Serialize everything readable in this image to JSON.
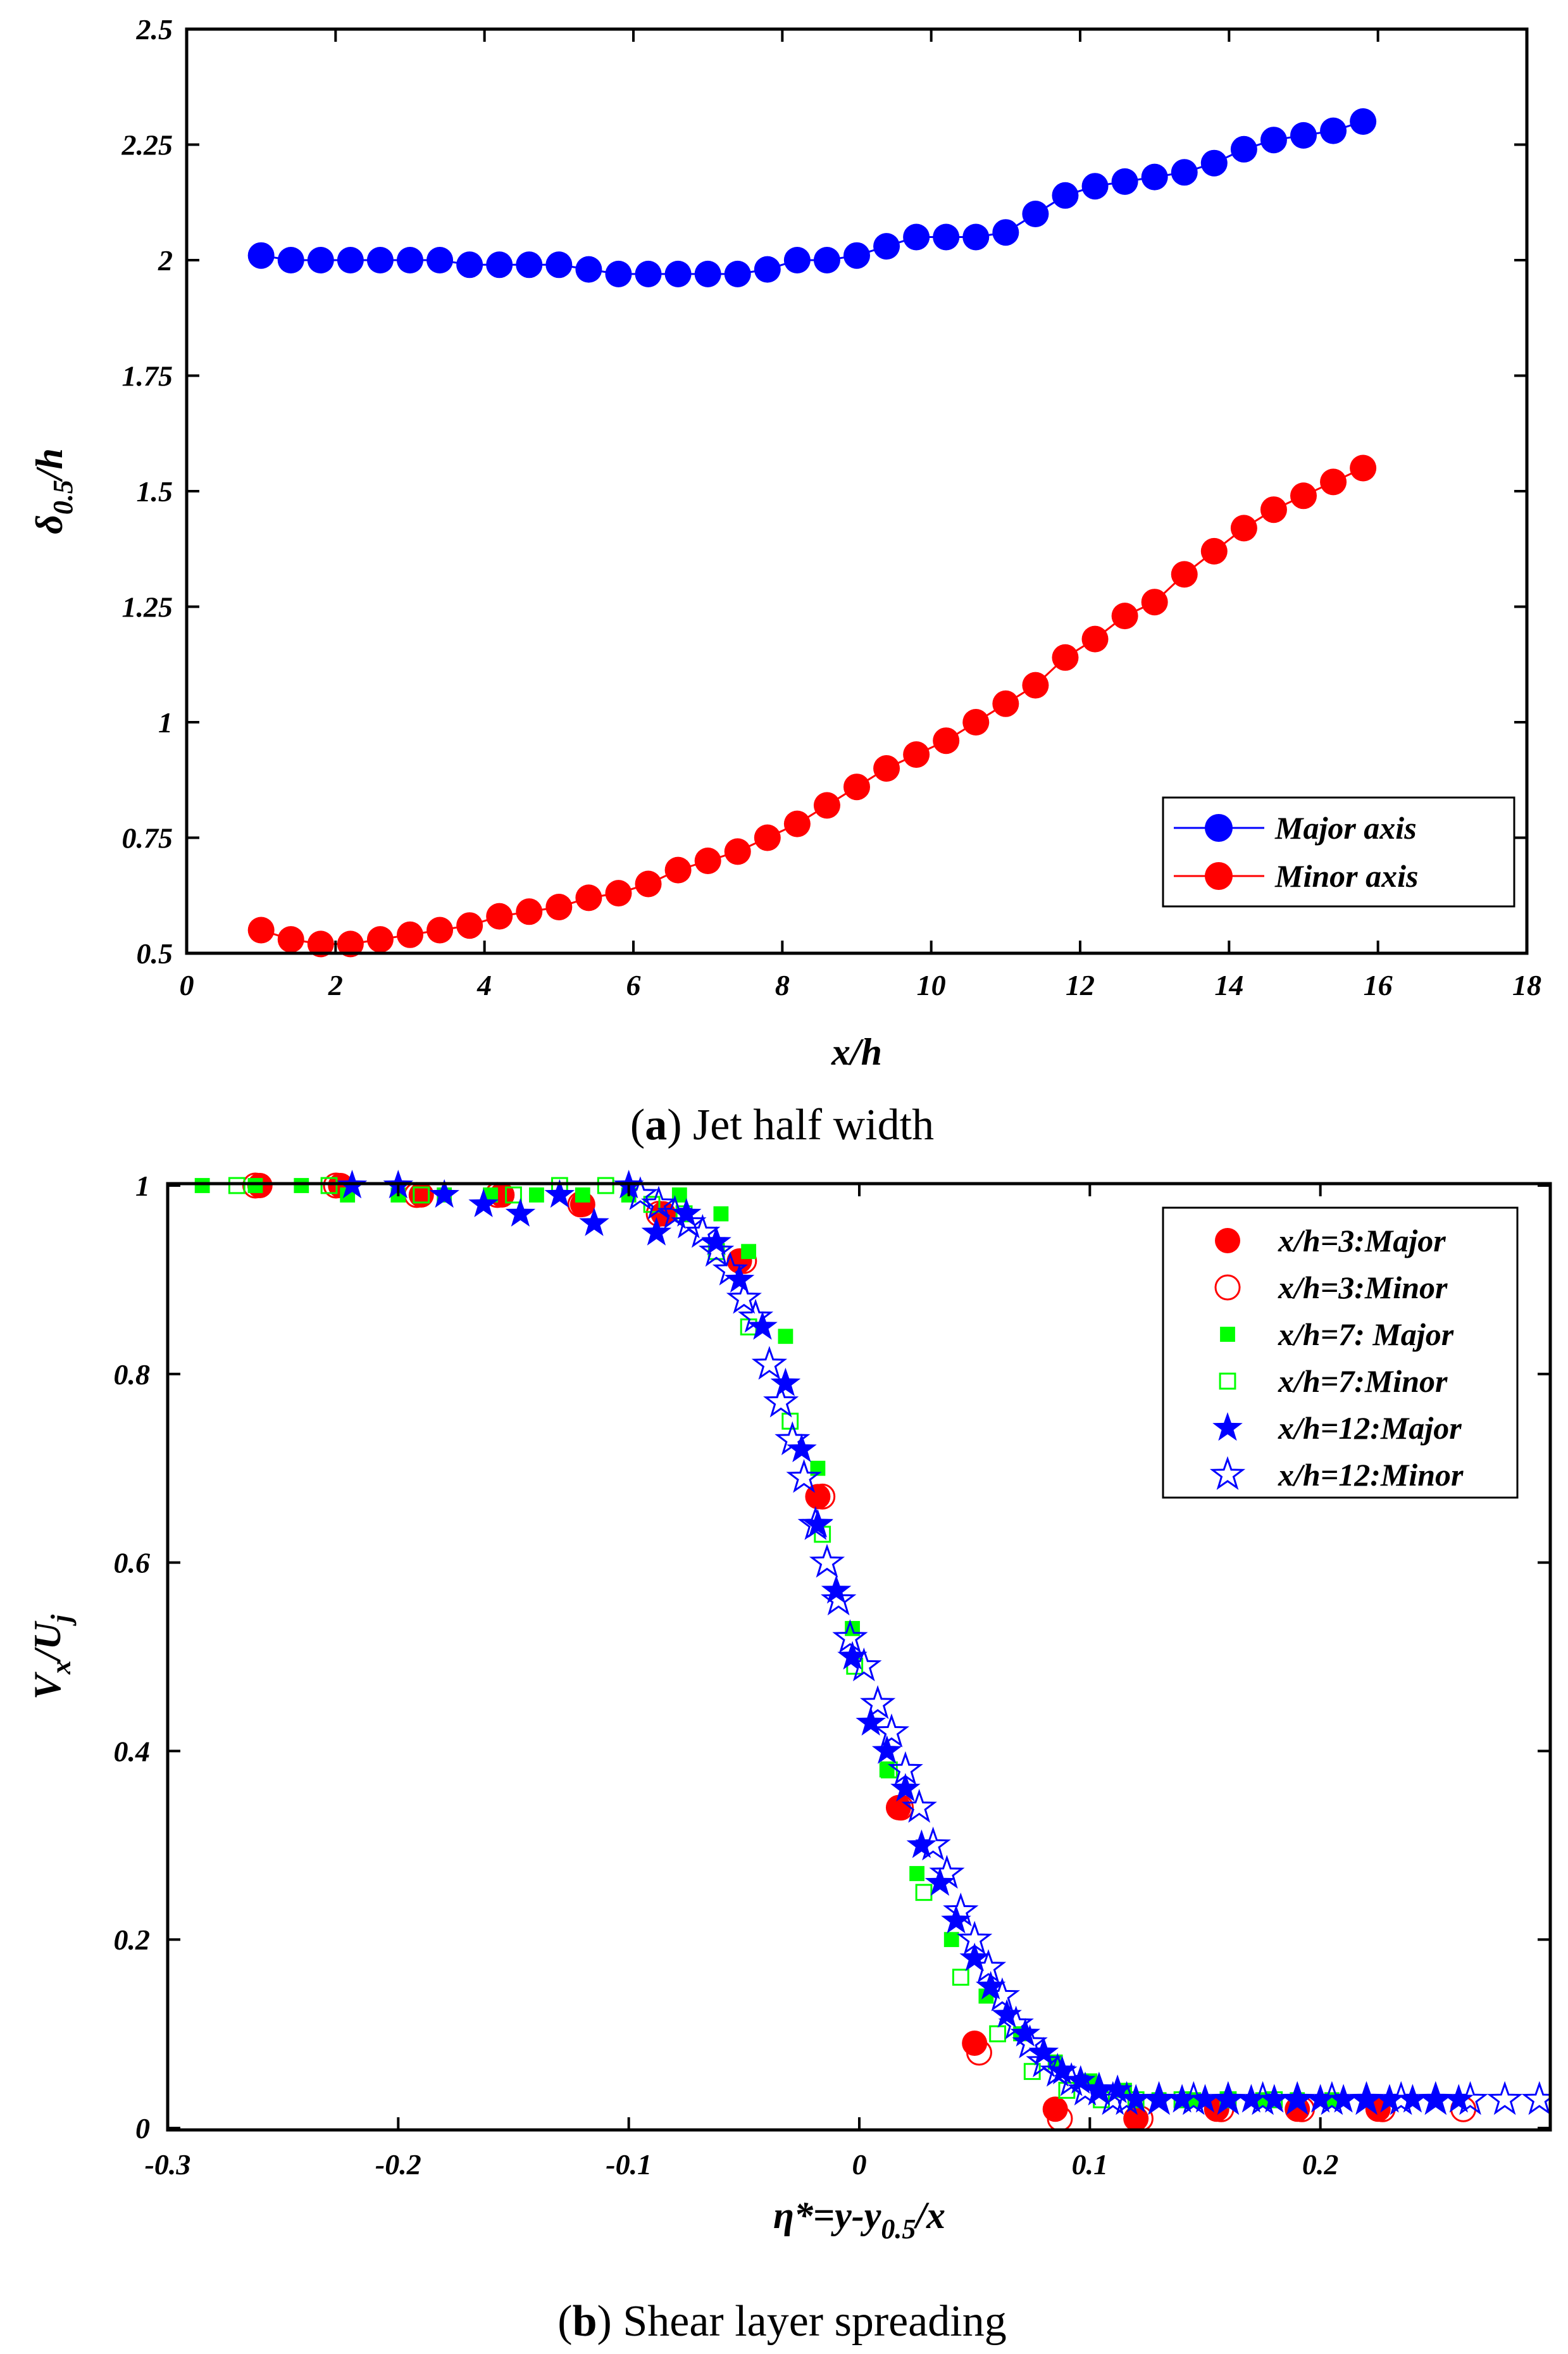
{
  "chart_data": [
    {
      "type": "line",
      "title": "",
      "caption": {
        "letter": "a",
        "text": "Jet half width"
      },
      "xlabel": "x/h",
      "ylabel": {
        "base": "δ",
        "sub": "0.5",
        "rest": "/h"
      },
      "xlim": [
        0,
        18
      ],
      "ylim": [
        0.5,
        2.5
      ],
      "xticks": [
        "0",
        "2",
        "4",
        "6",
        "8",
        "10",
        "12",
        "14",
        "16",
        "18"
      ],
      "yticks": [
        "0.5",
        "0.75",
        "1",
        "1.25",
        "1.5",
        "1.75",
        "2",
        "2.25",
        "2.5"
      ],
      "legend_position": "bottom-right",
      "x": [
        1.0,
        1.4,
        1.8,
        2.2,
        2.6,
        3.0,
        3.4,
        3.8,
        4.2,
        4.6,
        5.0,
        5.4,
        5.8,
        6.2,
        6.6,
        7.0,
        7.4,
        7.8,
        8.2,
        8.6,
        9.0,
        9.4,
        9.8,
        10.2,
        10.6,
        11.0,
        11.4,
        11.8,
        12.2,
        12.6,
        13.0,
        13.4,
        13.8,
        14.2,
        14.6,
        15.0,
        15.4,
        15.8
      ],
      "series": [
        {
          "name": "Major axis",
          "color": "#0000ff",
          "values": [
            2.01,
            2.0,
            2.0,
            2.0,
            2.0,
            2.0,
            2.0,
            1.99,
            1.99,
            1.99,
            1.99,
            1.98,
            1.97,
            1.97,
            1.97,
            1.97,
            1.97,
            1.98,
            2.0,
            2.0,
            2.01,
            2.03,
            2.05,
            2.05,
            2.05,
            2.06,
            2.1,
            2.14,
            2.16,
            2.17,
            2.18,
            2.19,
            2.21,
            2.24,
            2.26,
            2.27,
            2.28,
            2.3
          ]
        },
        {
          "name": "Minor axis",
          "color": "#ff0000",
          "values": [
            0.55,
            0.53,
            0.52,
            0.52,
            0.53,
            0.54,
            0.55,
            0.56,
            0.58,
            0.59,
            0.6,
            0.62,
            0.63,
            0.65,
            0.68,
            0.7,
            0.72,
            0.75,
            0.78,
            0.82,
            0.86,
            0.9,
            0.93,
            0.96,
            1.0,
            1.04,
            1.08,
            1.14,
            1.18,
            1.23,
            1.26,
            1.32,
            1.37,
            1.42,
            1.46,
            1.49,
            1.52,
            1.55
          ]
        }
      ]
    },
    {
      "type": "scatter",
      "title": "",
      "caption": {
        "letter": "b",
        "text": "Shear layer spreading"
      },
      "xlabel": "η*=y-y0.5/x",
      "xlabel_parts": {
        "a": "η*=y-y",
        "sub": "0.5",
        "b": "/x"
      },
      "ylabel": {
        "base": "V",
        "sub1": "x",
        "mid": "/U",
        "sub2": "j"
      },
      "xlim": [
        -0.3,
        0.3
      ],
      "ylim": [
        0,
        1
      ],
      "xticks": [
        "-0.3",
        "-0.2",
        "-0.1",
        "0",
        "0.1",
        "0.2"
      ],
      "yticks": [
        "0",
        "0.2",
        "0.4",
        "0.6",
        "0.8",
        "1"
      ],
      "legend_position": "top-right",
      "series": [
        {
          "name": "x/h=3:Major",
          "marker": "circle-filled",
          "color": "#ff0000",
          "x": [
            -0.26,
            -0.225,
            -0.19,
            -0.155,
            -0.12,
            -0.085,
            -0.052,
            -0.018,
            0.017,
            0.05,
            0.085,
            0.12,
            0.155,
            0.19,
            0.225
          ],
          "y": [
            1.0,
            1.0,
            0.99,
            0.99,
            0.98,
            0.97,
            0.92,
            0.67,
            0.34,
            0.09,
            0.02,
            0.01,
            0.02,
            0.02,
            0.02
          ]
        },
        {
          "name": "x/h=3:Minor",
          "marker": "circle-open",
          "color": "#ff0000",
          "x": [
            -0.262,
            -0.227,
            -0.192,
            -0.157,
            -0.121,
            -0.087,
            -0.05,
            -0.016,
            0.018,
            0.052,
            0.087,
            0.122,
            0.157,
            0.192,
            0.227,
            0.262
          ],
          "y": [
            1.0,
            1.0,
            0.99,
            0.99,
            0.98,
            0.97,
            0.92,
            0.67,
            0.34,
            0.08,
            0.01,
            0.01,
            0.02,
            0.02,
            0.02,
            0.02
          ]
        },
        {
          "name": "x/h=7: Major",
          "marker": "square-filled",
          "color": "#00ff00",
          "x": [
            -0.285,
            -0.262,
            -0.242,
            -0.222,
            -0.2,
            -0.18,
            -0.16,
            -0.14,
            -0.12,
            -0.1,
            -0.078,
            -0.06,
            -0.048,
            -0.032,
            -0.018,
            -0.003,
            0.012,
            0.025,
            0.04,
            0.055,
            0.07,
            0.085,
            0.1,
            0.115,
            0.13,
            0.145,
            0.16,
            0.175,
            0.19,
            0.205
          ],
          "y": [
            1.0,
            1.0,
            1.0,
            0.99,
            0.99,
            0.99,
            0.99,
            0.99,
            0.99,
            0.99,
            0.99,
            0.97,
            0.93,
            0.84,
            0.7,
            0.53,
            0.38,
            0.27,
            0.2,
            0.14,
            0.1,
            0.07,
            0.05,
            0.04,
            0.03,
            0.03,
            0.03,
            0.03,
            0.03,
            0.03
          ]
        },
        {
          "name": "x/h=7:Minor",
          "marker": "square-open",
          "color": "#00ff00",
          "x": [
            -0.27,
            -0.23,
            -0.19,
            -0.15,
            -0.13,
            -0.11,
            -0.09,
            -0.076,
            -0.062,
            -0.048,
            -0.03,
            -0.016,
            -0.002,
            0.013,
            0.028,
            0.044,
            0.06,
            0.075,
            0.09,
            0.105,
            0.12,
            0.14,
            0.16,
            0.18
          ],
          "y": [
            1.0,
            1.0,
            0.99,
            0.99,
            1.0,
            1.0,
            0.98,
            0.97,
            0.93,
            0.85,
            0.75,
            0.63,
            0.49,
            0.38,
            0.25,
            0.16,
            0.1,
            0.06,
            0.04,
            0.03,
            0.03,
            0.03,
            0.03,
            0.03
          ]
        },
        {
          "name": "x/h=12:Major",
          "marker": "star-filled",
          "color": "#0000ff",
          "x": [
            -0.22,
            -0.2,
            -0.18,
            -0.163,
            -0.147,
            -0.13,
            -0.115,
            -0.1,
            -0.088,
            -0.075,
            -0.062,
            -0.052,
            -0.042,
            -0.032,
            -0.025,
            -0.018,
            -0.01,
            -0.003,
            0.005,
            0.012,
            0.02,
            0.027,
            0.035,
            0.042,
            0.05,
            0.057,
            0.064,
            0.072,
            0.08,
            0.088,
            0.096,
            0.104,
            0.112,
            0.12,
            0.13,
            0.14,
            0.15,
            0.16,
            0.17,
            0.18,
            0.19,
            0.2,
            0.21,
            0.22,
            0.23,
            0.24,
            0.25,
            0.26
          ],
          "y": [
            1.0,
            1.0,
            0.99,
            0.98,
            0.97,
            0.99,
            0.96,
            1.0,
            0.95,
            0.97,
            0.94,
            0.9,
            0.85,
            0.79,
            0.72,
            0.64,
            0.57,
            0.5,
            0.43,
            0.4,
            0.36,
            0.3,
            0.26,
            0.22,
            0.18,
            0.15,
            0.12,
            0.1,
            0.08,
            0.06,
            0.05,
            0.04,
            0.04,
            0.03,
            0.03,
            0.03,
            0.03,
            0.03,
            0.03,
            0.03,
            0.03,
            0.03,
            0.03,
            0.03,
            0.03,
            0.03,
            0.03,
            0.03
          ]
        },
        {
          "name": "x/h=12:Minor",
          "marker": "star-open",
          "color": "#0000ff",
          "x": [
            -0.095,
            -0.087,
            -0.08,
            -0.074,
            -0.068,
            -0.062,
            -0.056,
            -0.05,
            -0.045,
            -0.039,
            -0.034,
            -0.029,
            -0.024,
            -0.019,
            -0.014,
            -0.009,
            -0.004,
            0.002,
            0.008,
            0.014,
            0.02,
            0.026,
            0.032,
            0.038,
            0.044,
            0.05,
            0.056,
            0.062,
            0.068,
            0.074,
            0.08,
            0.086,
            0.092,
            0.098,
            0.104,
            0.11,
            0.116,
            0.13,
            0.145,
            0.16,
            0.175,
            0.19,
            0.205,
            0.22,
            0.235,
            0.25,
            0.265,
            0.28,
            0.295
          ],
          "y": [
            0.99,
            0.98,
            0.97,
            0.96,
            0.95,
            0.93,
            0.91,
            0.88,
            0.86,
            0.81,
            0.77,
            0.73,
            0.69,
            0.64,
            0.6,
            0.56,
            0.52,
            0.49,
            0.45,
            0.42,
            0.38,
            0.34,
            0.3,
            0.27,
            0.23,
            0.2,
            0.17,
            0.14,
            0.11,
            0.09,
            0.07,
            0.06,
            0.05,
            0.04,
            0.04,
            0.03,
            0.03,
            0.03,
            0.03,
            0.03,
            0.03,
            0.03,
            0.03,
            0.03,
            0.03,
            0.03,
            0.03,
            0.03,
            0.03
          ]
        }
      ]
    }
  ]
}
